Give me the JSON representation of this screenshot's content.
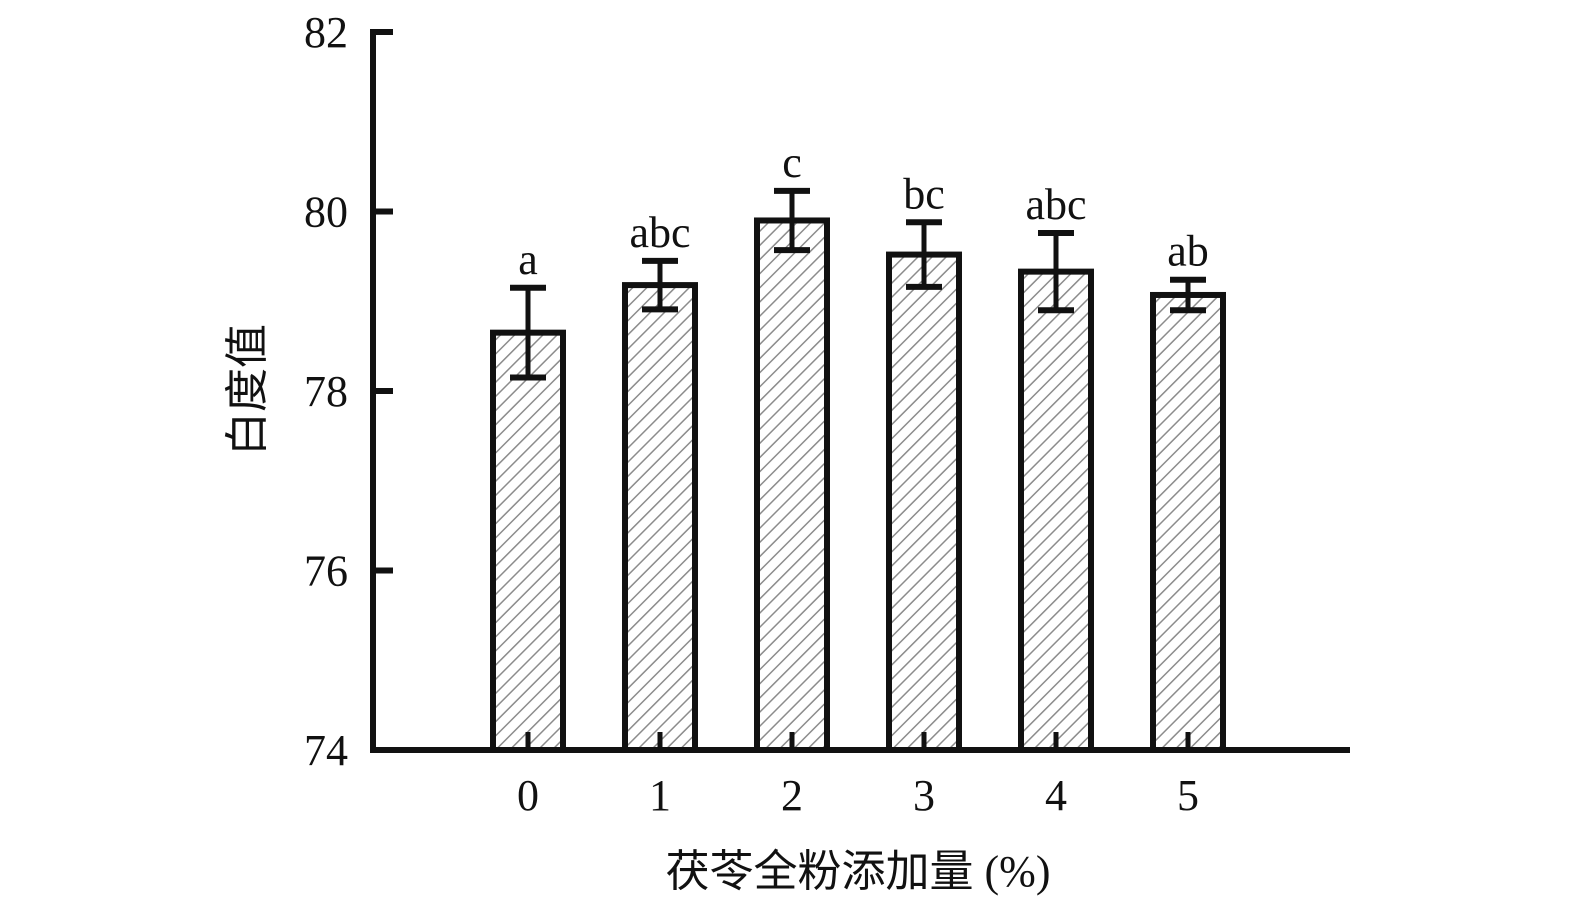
{
  "chart_data": {
    "type": "bar",
    "title": "",
    "xlabel": "茯苓全粉添加量 (%)",
    "ylabel": "白度值",
    "categories": [
      "0",
      "1",
      "2",
      "3",
      "4",
      "5"
    ],
    "values": [
      78.65,
      79.18,
      79.9,
      79.52,
      79.33,
      79.07
    ],
    "errors": [
      0.5,
      0.27,
      0.33,
      0.36,
      0.43,
      0.17
    ],
    "significance_labels": [
      "a",
      "abc",
      "c",
      "bc",
      "abc",
      "ab"
    ],
    "ylim": [
      74,
      82
    ],
    "yticks": [
      "74",
      "76",
      "78",
      "80",
      "82"
    ],
    "grid": false,
    "legend": "none",
    "bar_fill": "diagonal-hatch",
    "colors": {
      "axis": "#111111",
      "bar_edge": "#111111",
      "hatch": "#8c8c8c",
      "background": "#ffffff"
    }
  }
}
